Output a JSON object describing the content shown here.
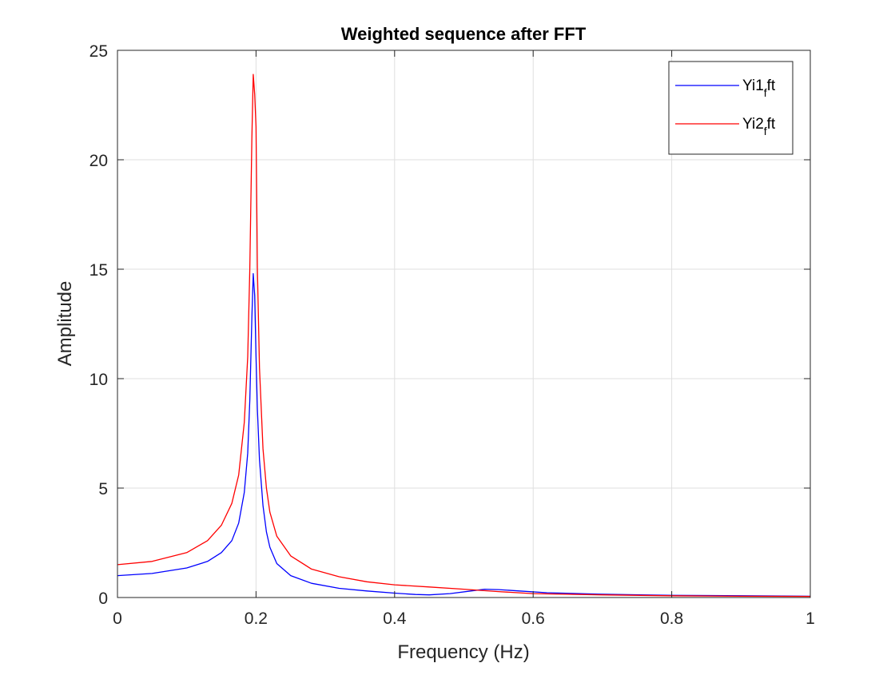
{
  "chart_data": {
    "type": "line",
    "title": "Weighted sequence after FFT",
    "xlabel": "Frequency (Hz)",
    "ylabel": "Amplitude",
    "xlim": [
      0,
      1
    ],
    "ylim": [
      0,
      25
    ],
    "xticks": [
      0,
      0.2,
      0.4,
      0.6,
      0.8,
      1
    ],
    "xtick_labels": [
      "0",
      "0.2",
      "0.4",
      "0.6",
      "0.8",
      "1"
    ],
    "yticks": [
      0,
      5,
      10,
      15,
      20,
      25
    ],
    "ytick_labels": [
      "0",
      "5",
      "10",
      "15",
      "20",
      "25"
    ],
    "grid": true,
    "legend_position": "top-right",
    "series": [
      {
        "name": "Yi1_fft",
        "legend_base": "Yi1",
        "legend_sub": "f",
        "legend_tail": "ft",
        "color": "#0000ff",
        "x": [
          0,
          0.05,
          0.1,
          0.13,
          0.15,
          0.165,
          0.175,
          0.183,
          0.188,
          0.191,
          0.194,
          0.196,
          0.198,
          0.2,
          0.202,
          0.205,
          0.21,
          0.215,
          0.22,
          0.23,
          0.25,
          0.28,
          0.32,
          0.36,
          0.4,
          0.43,
          0.45,
          0.48,
          0.51,
          0.53,
          0.55,
          0.58,
          0.62,
          0.7,
          0.8,
          0.9,
          1.0
        ],
        "y": [
          1.0,
          1.1,
          1.35,
          1.65,
          2.05,
          2.6,
          3.4,
          4.8,
          6.6,
          9.0,
          12.8,
          14.8,
          13.8,
          11.0,
          8.6,
          6.3,
          4.2,
          3.0,
          2.3,
          1.55,
          1.0,
          0.65,
          0.42,
          0.3,
          0.2,
          0.14,
          0.12,
          0.18,
          0.3,
          0.38,
          0.36,
          0.3,
          0.22,
          0.15,
          0.1,
          0.08,
          0.06
        ]
      },
      {
        "name": "Yi2_fft",
        "legend_base": "Yi2",
        "legend_sub": "f",
        "legend_tail": "ft",
        "color": "#ff0000",
        "x": [
          0,
          0.05,
          0.1,
          0.13,
          0.15,
          0.165,
          0.175,
          0.183,
          0.188,
          0.191,
          0.194,
          0.196,
          0.198,
          0.2,
          0.202,
          0.205,
          0.21,
          0.215,
          0.22,
          0.23,
          0.25,
          0.28,
          0.32,
          0.36,
          0.4,
          0.45,
          0.5,
          0.55,
          0.6,
          0.7,
          0.8,
          0.9,
          1.0
        ],
        "y": [
          1.5,
          1.65,
          2.05,
          2.6,
          3.3,
          4.3,
          5.6,
          8.0,
          11.0,
          15.0,
          21.0,
          23.9,
          23.0,
          21.5,
          15.0,
          10.5,
          6.8,
          5.0,
          3.9,
          2.8,
          1.9,
          1.3,
          0.95,
          0.72,
          0.58,
          0.48,
          0.38,
          0.27,
          0.18,
          0.12,
          0.08,
          0.06,
          0.05
        ]
      }
    ]
  }
}
